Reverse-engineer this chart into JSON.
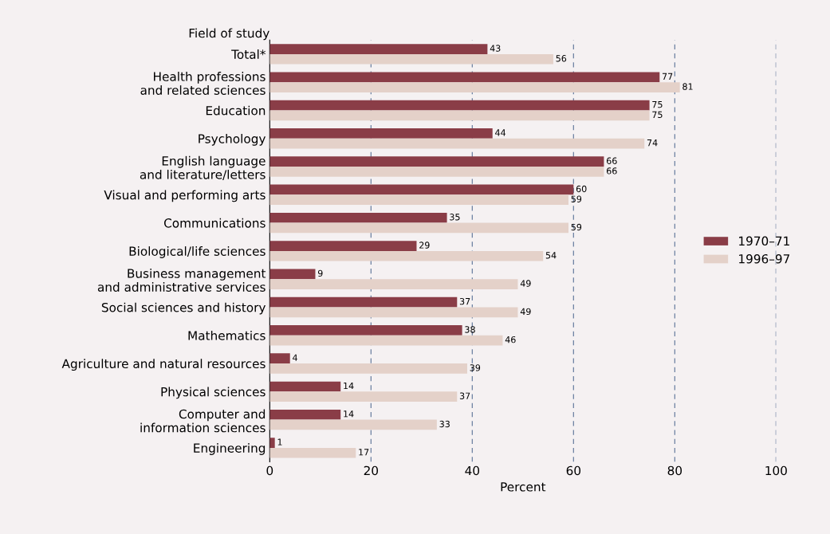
{
  "chart_data": {
    "type": "bar",
    "orientation": "horizontal",
    "ylabel": "Field of study",
    "xlabel": "Percent",
    "categories": [
      "Total*",
      "Health professions\nand related sciences",
      "Education",
      "Psychology",
      "English language\nand literature/letters",
      "Visual and performing arts",
      "Communications",
      "Biological/life sciences",
      "Business management\nand administrative services",
      "Social sciences and history",
      "Mathematics",
      "Agriculture and natural resources",
      "Physical sciences",
      "Computer and\ninformation sciences",
      "Engineering"
    ],
    "series": [
      {
        "name": "1970–71",
        "color": "#8a3d47",
        "values": [
          43,
          77,
          75,
          44,
          66,
          60,
          35,
          29,
          9,
          37,
          38,
          4,
          14,
          14,
          1
        ]
      },
      {
        "name": "1996–97",
        "color": "#e4d1c9",
        "values": [
          56,
          81,
          75,
          74,
          66,
          59,
          59,
          54,
          49,
          49,
          46,
          39,
          37,
          33,
          17
        ]
      }
    ],
    "xlim": [
      0,
      100
    ],
    "xticks": [
      0,
      20,
      40,
      60,
      80,
      100
    ],
    "grid": "x",
    "legend": "right",
    "data_labels": true
  }
}
